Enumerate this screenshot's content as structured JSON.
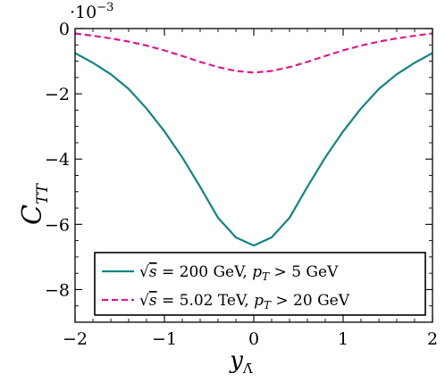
{
  "chart_data": {
    "type": "line",
    "title": "",
    "xlabel": "y",
    "xlabel_sub": "Λ̄",
    "ylabel": "C",
    "ylabel_sub": "TT",
    "y_multiplier": "·10",
    "y_multiplier_exp": "−3",
    "xlim": [
      -2,
      2
    ],
    "ylim": [
      -9,
      0
    ],
    "xticks": [
      -2,
      -1,
      0,
      1,
      2
    ],
    "xtick_labels": [
      "−2",
      "−1",
      "0",
      "1",
      "2"
    ],
    "yticks": [
      0,
      -2,
      -4,
      -6,
      -8
    ],
    "ytick_labels": [
      "0",
      "−2",
      "−4",
      "−6",
      "−8"
    ],
    "grid": false,
    "legend_position": "bottom-right",
    "x": [
      -2.0,
      -1.8,
      -1.6,
      -1.4,
      -1.2,
      -1.0,
      -0.8,
      -0.6,
      -0.4,
      -0.2,
      0.0,
      0.2,
      0.4,
      0.6,
      0.8,
      1.0,
      1.2,
      1.4,
      1.6,
      1.8,
      2.0
    ],
    "series": [
      {
        "name": "√s = 200 GeV, p_T > 5 GeV",
        "legend_parts": {
          "sqrt": "√",
          "s": "s",
          "eq": " = 200 GeV, ",
          "p": "p",
          "sub": "T",
          "rest": " > 5 GeV"
        },
        "color": "#0e8585",
        "style": "solid",
        "values": [
          -0.75,
          -1.05,
          -1.4,
          -1.85,
          -2.45,
          -3.15,
          -3.95,
          -4.85,
          -5.8,
          -6.4,
          -6.65,
          -6.4,
          -5.8,
          -4.85,
          -3.95,
          -3.15,
          -2.45,
          -1.85,
          -1.4,
          -1.05,
          -0.75
        ]
      },
      {
        "name": "√s = 5.02 TeV, p_T > 20 GeV",
        "legend_parts": {
          "sqrt": "√",
          "s": "s",
          "eq": " = 5.02 TeV, ",
          "p": "p",
          "sub": "T",
          "rest": " > 20 GeV"
        },
        "color": "#e0198c",
        "style": "dashed",
        "values": [
          -0.15,
          -0.22,
          -0.3,
          -0.4,
          -0.52,
          -0.67,
          -0.84,
          -1.02,
          -1.18,
          -1.3,
          -1.35,
          -1.3,
          -1.18,
          -1.02,
          -0.84,
          -0.67,
          -0.52,
          -0.4,
          -0.3,
          -0.22,
          -0.15
        ]
      }
    ]
  }
}
